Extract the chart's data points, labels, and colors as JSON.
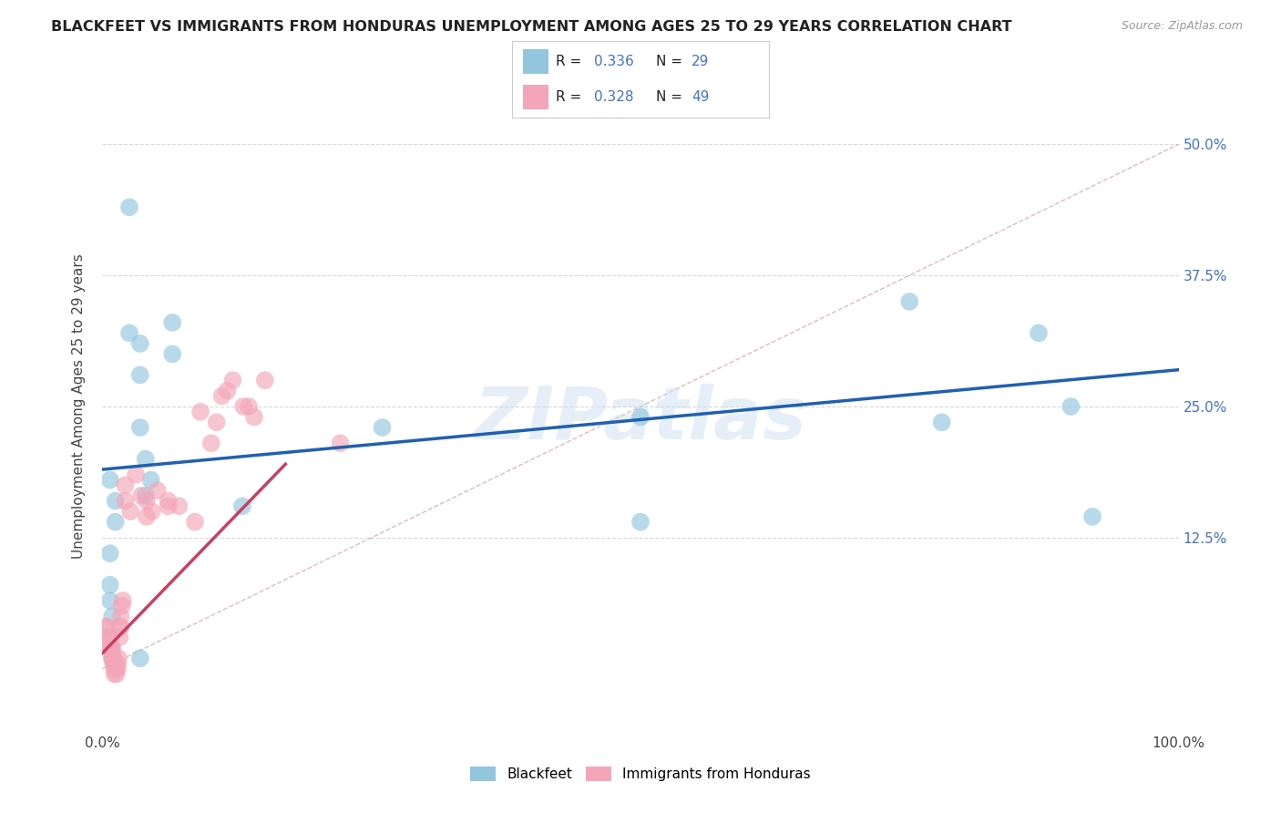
{
  "title": "BLACKFEET VS IMMIGRANTS FROM HONDURAS UNEMPLOYMENT AMONG AGES 25 TO 29 YEARS CORRELATION CHART",
  "source": "Source: ZipAtlas.com",
  "ylabel": "Unemployment Among Ages 25 to 29 years",
  "legend_r1": "R = 0.336",
  "legend_n1": "N = 29",
  "legend_r2": "R = 0.328",
  "legend_n2": "N = 49",
  "legend_bottom": [
    "Blackfeet",
    "Immigrants from Honduras"
  ],
  "color_blue": "#92c5de",
  "color_pink": "#f4a6b8",
  "color_blue_line": "#2060b0",
  "color_pink_line": "#c84060",
  "color_blue_text": "#4472c4",
  "color_diag": "#d0a0a0",
  "bg_color": "#ffffff",
  "grid_color": "#d8d8d8",
  "watermark": "ZIPatlas",
  "xlim": [
    0,
    1.0
  ],
  "ylim": [
    -0.06,
    0.56
  ],
  "blue_scatter_x": [
    0.025,
    0.025,
    0.035,
    0.035,
    0.035,
    0.04,
    0.04,
    0.045,
    0.007,
    0.012,
    0.012,
    0.007,
    0.007,
    0.007,
    0.009,
    0.009,
    0.009,
    0.26,
    0.13,
    0.065,
    0.065,
    0.75,
    0.78,
    0.87,
    0.9,
    0.92,
    0.035,
    0.5,
    0.5
  ],
  "blue_scatter_y": [
    0.44,
    0.32,
    0.31,
    0.28,
    0.23,
    0.2,
    0.165,
    0.18,
    0.18,
    0.16,
    0.14,
    0.11,
    0.08,
    0.065,
    0.05,
    0.02,
    0.01,
    0.23,
    0.155,
    0.3,
    0.33,
    0.35,
    0.235,
    0.32,
    0.25,
    0.145,
    0.01,
    0.24,
    0.14
  ],
  "pink_scatter_x": [
    0.003,
    0.004,
    0.005,
    0.006,
    0.006,
    0.008,
    0.008,
    0.009,
    0.009,
    0.01,
    0.01,
    0.011,
    0.011,
    0.011,
    0.013,
    0.013,
    0.014,
    0.014,
    0.015,
    0.016,
    0.016,
    0.017,
    0.017,
    0.018,
    0.019,
    0.021,
    0.021,
    0.026,
    0.031,
    0.036,
    0.041,
    0.041,
    0.046,
    0.051,
    0.061,
    0.061,
    0.071,
    0.086,
    0.091,
    0.101,
    0.106,
    0.111,
    0.116,
    0.121,
    0.131,
    0.136,
    0.141,
    0.151,
    0.221
  ],
  "pink_scatter_y": [
    0.04,
    0.04,
    0.03,
    0.03,
    0.025,
    0.02,
    0.02,
    0.015,
    0.01,
    0.01,
    0.005,
    0.005,
    0.0,
    -0.005,
    -0.005,
    0.0,
    0.0,
    0.005,
    0.01,
    0.03,
    0.04,
    0.04,
    0.05,
    0.06,
    0.065,
    0.16,
    0.175,
    0.15,
    0.185,
    0.165,
    0.145,
    0.16,
    0.15,
    0.17,
    0.16,
    0.155,
    0.155,
    0.14,
    0.245,
    0.215,
    0.235,
    0.26,
    0.265,
    0.275,
    0.25,
    0.25,
    0.24,
    0.275,
    0.215
  ],
  "blue_line_x": [
    0.0,
    1.0
  ],
  "blue_line_y": [
    0.19,
    0.285
  ],
  "pink_line_x": [
    0.0,
    0.17
  ],
  "pink_line_y": [
    0.015,
    0.195
  ],
  "diagonal_line_x": [
    0.0,
    1.0
  ],
  "diagonal_line_y": [
    0.0,
    0.5
  ]
}
